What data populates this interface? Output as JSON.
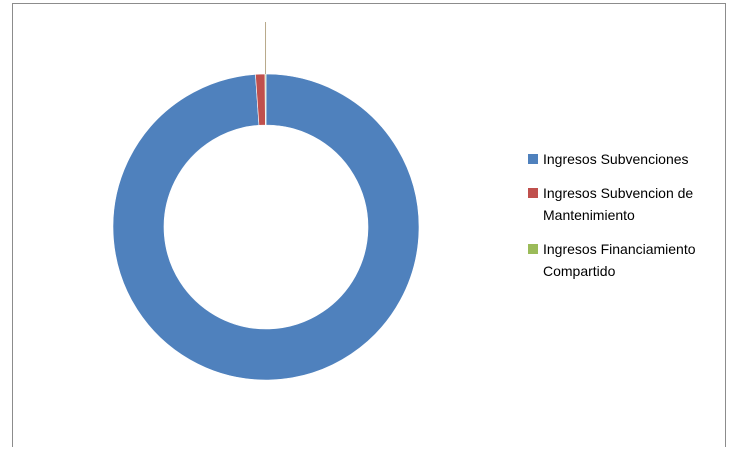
{
  "chart_data": {
    "type": "pie",
    "variant": "donut",
    "title": "",
    "categories": [
      "Ingresos Subvenciones",
      "Ingresos Subvencion de Mantenimiento",
      "Ingresos Financiamiento Compartido"
    ],
    "values": [
      98.9,
      1.0,
      0.1
    ],
    "colors": [
      "#4F81BD",
      "#C0504D",
      "#9BBB59"
    ],
    "legend_position": "right"
  },
  "legend": {
    "items": [
      {
        "label_line1": "Ingresos Subvenciones",
        "label_line2": "",
        "color": "#4F81BD"
      },
      {
        "label_line1": "Ingresos Subvencion de",
        "label_line2": "Mantenimiento",
        "color": "#C0504D"
      },
      {
        "label_line1": "Ingresos Financiamiento",
        "label_line2": "Compartido",
        "color": "#9BBB59"
      }
    ]
  }
}
